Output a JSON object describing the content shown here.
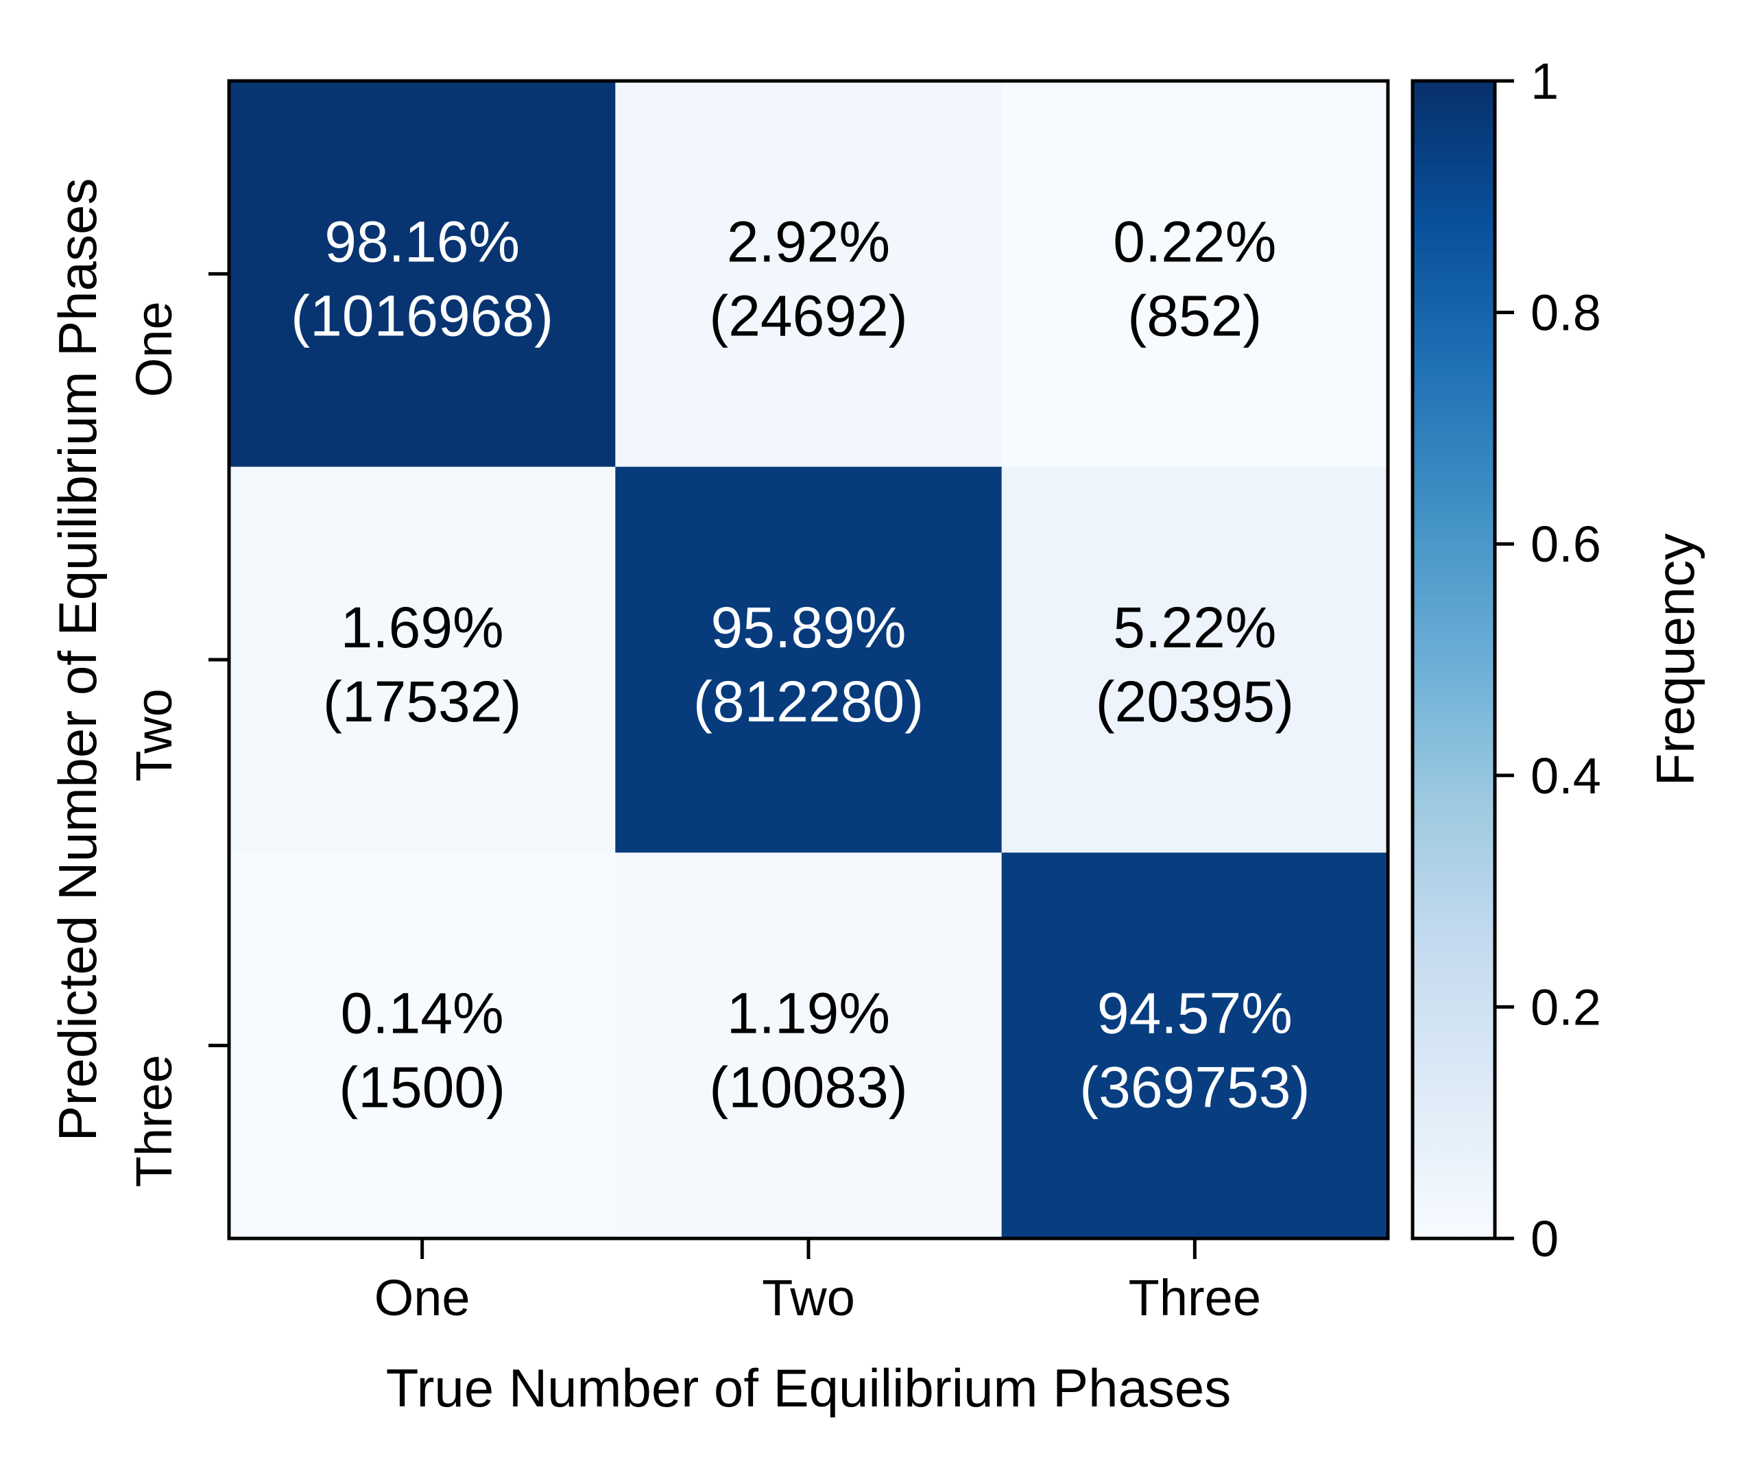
{
  "chart_data": {
    "type": "heatmap",
    "title": "",
    "xlabel": "True Number of Equilibrium Phases",
    "ylabel": "Predicted Number of Equilibrium Phases",
    "x_categories": [
      "One",
      "Two",
      "Three"
    ],
    "y_categories": [
      "One",
      "Two",
      "Three"
    ],
    "cells": [
      {
        "row": 0,
        "col": 0,
        "percent": "98.16%",
        "count": "(1016968)",
        "value": 0.9816
      },
      {
        "row": 0,
        "col": 1,
        "percent": "2.92%",
        "count": "(24692)",
        "value": 0.0292
      },
      {
        "row": 0,
        "col": 2,
        "percent": "0.22%",
        "count": "(852)",
        "value": 0.0022
      },
      {
        "row": 1,
        "col": 0,
        "percent": "1.69%",
        "count": "(17532)",
        "value": 0.0169
      },
      {
        "row": 1,
        "col": 1,
        "percent": "95.89%",
        "count": "(812280)",
        "value": 0.9589
      },
      {
        "row": 1,
        "col": 2,
        "percent": "5.22%",
        "count": "(20395)",
        "value": 0.0522
      },
      {
        "row": 2,
        "col": 0,
        "percent": "0.14%",
        "count": "(1500)",
        "value": 0.0014
      },
      {
        "row": 2,
        "col": 1,
        "percent": "1.19%",
        "count": "(10083)",
        "value": 0.0119
      },
      {
        "row": 2,
        "col": 2,
        "percent": "94.57%",
        "count": "(369753)",
        "value": 0.9457
      }
    ],
    "colorbar": {
      "label": "Frequency",
      "range": [
        0,
        1
      ],
      "ticks": [
        {
          "value": 0,
          "label": "0"
        },
        {
          "value": 0.2,
          "label": "0.2"
        },
        {
          "value": 0.4,
          "label": "0.4"
        },
        {
          "value": 0.6,
          "label": "0.6"
        },
        {
          "value": 0.8,
          "label": "0.8"
        },
        {
          "value": 1,
          "label": "1"
        }
      ],
      "colormap": "Blues",
      "colors": [
        "#f7fbff",
        "#deebf7",
        "#c6dbef",
        "#9ecae1",
        "#6baed6",
        "#4292c6",
        "#2171b5",
        "#08519c",
        "#08306b"
      ]
    },
    "text_color_dark": "#000000",
    "text_color_light": "#ffffff",
    "grid": false
  }
}
